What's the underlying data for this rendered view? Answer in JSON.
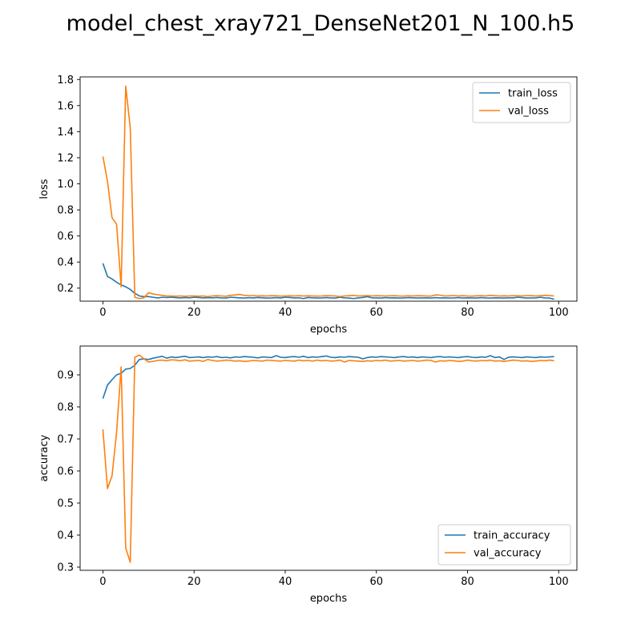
{
  "figure": {
    "title": "model_chest_xray721_DenseNet201_N_100.h5",
    "background": "#ffffff"
  },
  "colors": {
    "train": "#1f77b4",
    "val": "#ff7f0e"
  },
  "chart_data": [
    {
      "type": "line",
      "title": "",
      "xlabel": "epochs",
      "ylabel": "loss",
      "xlim": [
        -5,
        104
      ],
      "ylim": [
        0.1,
        1.82
      ],
      "xticks": [
        0,
        20,
        40,
        60,
        80,
        100
      ],
      "yticks": [
        0.2,
        0.4,
        0.6,
        0.8,
        1.0,
        1.2,
        1.4,
        1.6,
        1.8
      ],
      "ytick_labels": [
        "0.2",
        "0.4",
        "0.6",
        "0.8",
        "1.0",
        "1.2",
        "1.4",
        "1.6",
        "1.8"
      ],
      "grid": false,
      "legend": "upper-right",
      "series": [
        {
          "name": "train_loss",
          "color": "#1f77b4",
          "x": [
            0,
            1,
            2,
            3,
            4,
            5,
            6,
            7,
            8,
            9,
            10,
            11,
            12,
            13,
            14,
            15,
            16,
            17,
            18,
            19,
            20,
            21,
            22,
            23,
            24,
            25,
            26,
            27,
            28,
            29,
            30,
            31,
            32,
            33,
            34,
            35,
            36,
            37,
            38,
            39,
            40,
            41,
            42,
            43,
            44,
            45,
            46,
            47,
            48,
            49,
            50,
            51,
            52,
            53,
            54,
            55,
            56,
            57,
            58,
            59,
            60,
            61,
            62,
            63,
            64,
            65,
            66,
            67,
            68,
            69,
            70,
            71,
            72,
            73,
            74,
            75,
            76,
            77,
            78,
            79,
            80,
            81,
            82,
            83,
            84,
            85,
            86,
            87,
            88,
            89,
            90,
            91,
            92,
            93,
            94,
            95,
            96,
            97,
            98,
            99
          ],
          "values": [
            0.39,
            0.29,
            0.27,
            0.245,
            0.225,
            0.21,
            0.19,
            0.16,
            0.14,
            0.135,
            0.135,
            0.13,
            0.125,
            0.13,
            0.128,
            0.13,
            0.127,
            0.125,
            0.128,
            0.126,
            0.13,
            0.128,
            0.125,
            0.127,
            0.126,
            0.128,
            0.125,
            0.124,
            0.13,
            0.128,
            0.126,
            0.124,
            0.127,
            0.125,
            0.128,
            0.126,
            0.124,
            0.125,
            0.127,
            0.125,
            0.13,
            0.128,
            0.125,
            0.126,
            0.12,
            0.128,
            0.126,
            0.124,
            0.125,
            0.127,
            0.125,
            0.124,
            0.13,
            0.126,
            0.124,
            0.12,
            0.125,
            0.128,
            0.135,
            0.126,
            0.125,
            0.124,
            0.127,
            0.125,
            0.126,
            0.124,
            0.125,
            0.127,
            0.126,
            0.124,
            0.125,
            0.126,
            0.124,
            0.127,
            0.125,
            0.126,
            0.124,
            0.125,
            0.127,
            0.124,
            0.126,
            0.125,
            0.124,
            0.127,
            0.125,
            0.124,
            0.126,
            0.125,
            0.124,
            0.126,
            0.125,
            0.13,
            0.127,
            0.124,
            0.125,
            0.126,
            0.13,
            0.125,
            0.124,
            0.115
          ]
        },
        {
          "name": "val_loss",
          "color": "#ff7f0e",
          "x": [
            0,
            1,
            2,
            3,
            4,
            5,
            6,
            7,
            8,
            9,
            10,
            11,
            12,
            13,
            14,
            15,
            16,
            17,
            18,
            19,
            20,
            21,
            22,
            23,
            24,
            25,
            26,
            27,
            28,
            29,
            30,
            31,
            32,
            33,
            34,
            35,
            36,
            37,
            38,
            39,
            40,
            41,
            42,
            43,
            44,
            45,
            46,
            47,
            48,
            49,
            50,
            51,
            52,
            53,
            54,
            55,
            56,
            57,
            58,
            59,
            60,
            61,
            62,
            63,
            64,
            65,
            66,
            67,
            68,
            69,
            70,
            71,
            72,
            73,
            74,
            75,
            76,
            77,
            78,
            79,
            80,
            81,
            82,
            83,
            84,
            85,
            86,
            87,
            88,
            89,
            90,
            91,
            92,
            93,
            94,
            95,
            96,
            97,
            98,
            99
          ],
          "values": [
            1.21,
            1.02,
            0.74,
            0.69,
            0.21,
            1.75,
            1.43,
            0.13,
            0.12,
            0.125,
            0.165,
            0.155,
            0.15,
            0.145,
            0.14,
            0.14,
            0.138,
            0.14,
            0.137,
            0.14,
            0.14,
            0.138,
            0.14,
            0.135,
            0.14,
            0.142,
            0.14,
            0.138,
            0.145,
            0.148,
            0.152,
            0.145,
            0.143,
            0.142,
            0.14,
            0.141,
            0.14,
            0.142,
            0.141,
            0.139,
            0.14,
            0.141,
            0.14,
            0.142,
            0.14,
            0.141,
            0.14,
            0.139,
            0.14,
            0.142,
            0.141,
            0.14,
            0.135,
            0.14,
            0.142,
            0.145,
            0.14,
            0.141,
            0.143,
            0.14,
            0.142,
            0.141,
            0.14,
            0.141,
            0.142,
            0.14,
            0.139,
            0.141,
            0.14,
            0.142,
            0.141,
            0.14,
            0.139,
            0.148,
            0.146,
            0.14,
            0.141,
            0.143,
            0.14,
            0.142,
            0.14,
            0.139,
            0.141,
            0.142,
            0.14,
            0.145,
            0.142,
            0.14,
            0.141,
            0.14,
            0.142,
            0.141,
            0.14,
            0.143,
            0.142,
            0.14,
            0.142,
            0.145,
            0.143,
            0.14
          ]
        }
      ]
    },
    {
      "type": "line",
      "title": "",
      "xlabel": "epochs",
      "ylabel": "accuracy",
      "xlim": [
        -5,
        104
      ],
      "ylim": [
        0.29,
        0.99
      ],
      "xticks": [
        0,
        20,
        40,
        60,
        80,
        100
      ],
      "yticks": [
        0.3,
        0.4,
        0.5,
        0.6,
        0.7,
        0.8,
        0.9
      ],
      "ytick_labels": [
        "0.3",
        "0.4",
        "0.5",
        "0.6",
        "0.7",
        "0.8",
        "0.9"
      ],
      "grid": false,
      "legend": "lower-right",
      "series": [
        {
          "name": "train_accuracy",
          "color": "#1f77b4",
          "x": [
            0,
            1,
            2,
            3,
            4,
            5,
            6,
            7,
            8,
            9,
            10,
            11,
            12,
            13,
            14,
            15,
            16,
            17,
            18,
            19,
            20,
            21,
            22,
            23,
            24,
            25,
            26,
            27,
            28,
            29,
            30,
            31,
            32,
            33,
            34,
            35,
            36,
            37,
            38,
            39,
            40,
            41,
            42,
            43,
            44,
            45,
            46,
            47,
            48,
            49,
            50,
            51,
            52,
            53,
            54,
            55,
            56,
            57,
            58,
            59,
            60,
            61,
            62,
            63,
            64,
            65,
            66,
            67,
            68,
            69,
            70,
            71,
            72,
            73,
            74,
            75,
            76,
            77,
            78,
            79,
            80,
            81,
            82,
            83,
            84,
            85,
            86,
            87,
            88,
            89,
            90,
            91,
            92,
            93,
            94,
            95,
            96,
            97,
            98,
            99
          ],
          "values": [
            0.826,
            0.868,
            0.885,
            0.9,
            0.905,
            0.918,
            0.92,
            0.93,
            0.948,
            0.95,
            0.948,
            0.952,
            0.955,
            0.958,
            0.952,
            0.956,
            0.954,
            0.956,
            0.958,
            0.954,
            0.955,
            0.956,
            0.954,
            0.956,
            0.955,
            0.957,
            0.954,
            0.955,
            0.953,
            0.956,
            0.955,
            0.957,
            0.956,
            0.955,
            0.953,
            0.956,
            0.955,
            0.954,
            0.96,
            0.955,
            0.954,
            0.956,
            0.957,
            0.955,
            0.958,
            0.954,
            0.956,
            0.955,
            0.957,
            0.959,
            0.955,
            0.954,
            0.956,
            0.955,
            0.957,
            0.956,
            0.955,
            0.95,
            0.954,
            0.956,
            0.955,
            0.957,
            0.956,
            0.955,
            0.954,
            0.956,
            0.957,
            0.955,
            0.956,
            0.954,
            0.956,
            0.955,
            0.954,
            0.956,
            0.957,
            0.955,
            0.956,
            0.955,
            0.954,
            0.956,
            0.957,
            0.955,
            0.954,
            0.956,
            0.955,
            0.96,
            0.954,
            0.956,
            0.948,
            0.955,
            0.956,
            0.955,
            0.954,
            0.956,
            0.955,
            0.954,
            0.956,
            0.955,
            0.956,
            0.957
          ]
        },
        {
          "name": "val_accuracy",
          "color": "#ff7f0e",
          "x": [
            0,
            1,
            2,
            3,
            4,
            5,
            6,
            7,
            8,
            9,
            10,
            11,
            12,
            13,
            14,
            15,
            16,
            17,
            18,
            19,
            20,
            21,
            22,
            23,
            24,
            25,
            26,
            27,
            28,
            29,
            30,
            31,
            32,
            33,
            34,
            35,
            36,
            37,
            38,
            39,
            40,
            41,
            42,
            43,
            44,
            45,
            46,
            47,
            48,
            49,
            50,
            51,
            52,
            53,
            54,
            55,
            56,
            57,
            58,
            59,
            60,
            61,
            62,
            63,
            64,
            65,
            66,
            67,
            68,
            69,
            70,
            71,
            72,
            73,
            74,
            75,
            76,
            77,
            78,
            79,
            80,
            81,
            82,
            83,
            84,
            85,
            86,
            87,
            88,
            89,
            90,
            91,
            92,
            93,
            94,
            95,
            96,
            97,
            98,
            99
          ],
          "values": [
            0.73,
            0.545,
            0.585,
            0.72,
            0.925,
            0.36,
            0.315,
            0.955,
            0.962,
            0.95,
            0.94,
            0.942,
            0.945,
            0.946,
            0.944,
            0.947,
            0.946,
            0.944,
            0.947,
            0.943,
            0.944,
            0.945,
            0.942,
            0.948,
            0.945,
            0.943,
            0.944,
            0.946,
            0.945,
            0.943,
            0.944,
            0.942,
            0.943,
            0.945,
            0.944,
            0.943,
            0.946,
            0.945,
            0.944,
            0.943,
            0.945,
            0.944,
            0.943,
            0.946,
            0.944,
            0.945,
            0.943,
            0.946,
            0.944,
            0.945,
            0.943,
            0.944,
            0.946,
            0.94,
            0.945,
            0.944,
            0.943,
            0.942,
            0.944,
            0.943,
            0.945,
            0.944,
            0.946,
            0.943,
            0.944,
            0.945,
            0.943,
            0.944,
            0.945,
            0.943,
            0.944,
            0.946,
            0.945,
            0.94,
            0.944,
            0.943,
            0.945,
            0.944,
            0.942,
            0.943,
            0.946,
            0.944,
            0.943,
            0.945,
            0.944,
            0.946,
            0.943,
            0.944,
            0.942,
            0.944,
            0.946,
            0.945,
            0.943,
            0.944,
            0.942,
            0.943,
            0.945,
            0.944,
            0.946,
            0.944
          ]
        }
      ]
    }
  ]
}
